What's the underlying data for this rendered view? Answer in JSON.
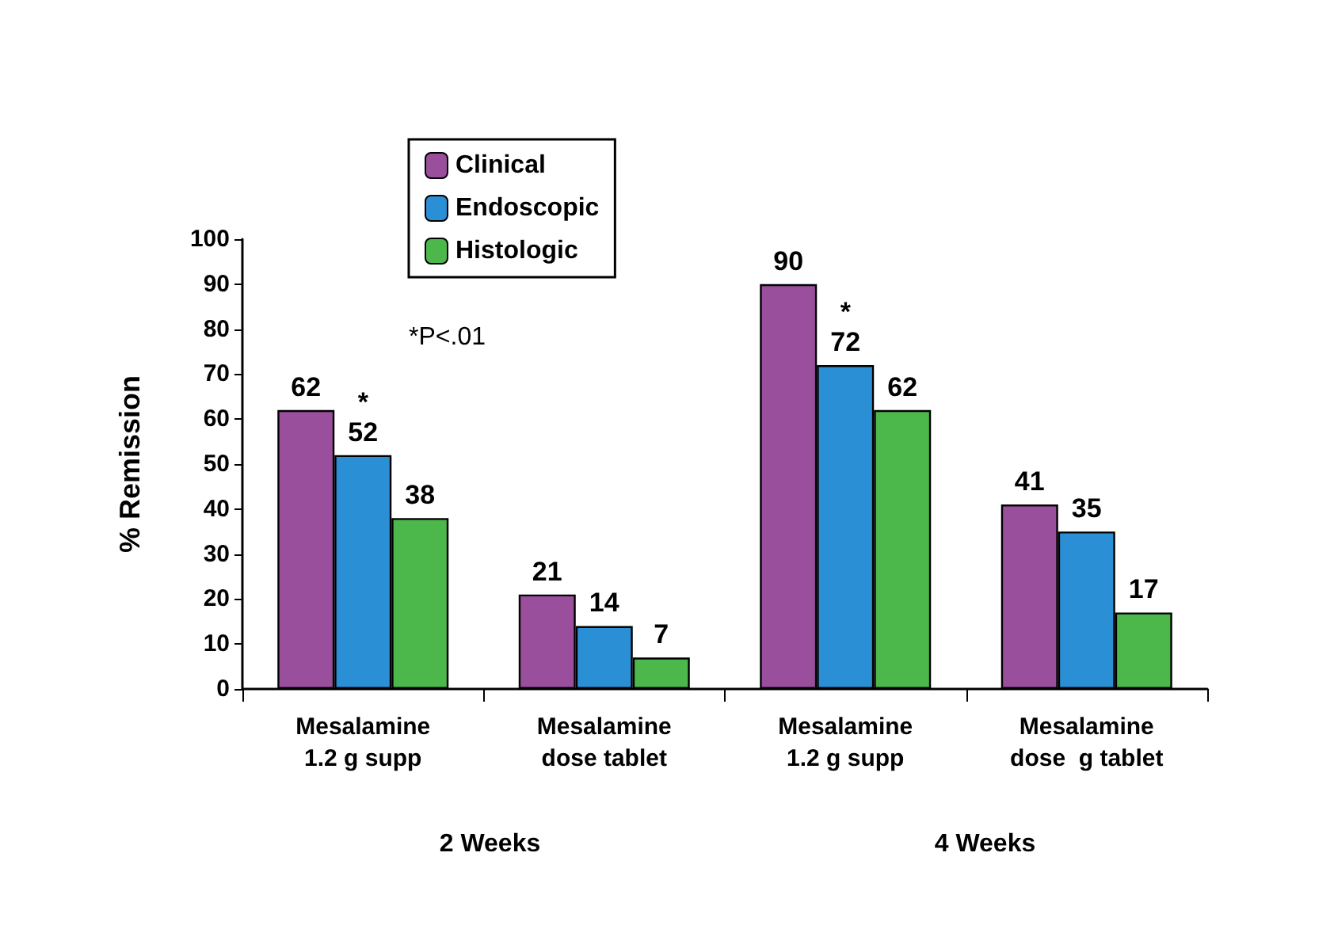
{
  "chart_data": {
    "type": "bar",
    "ylabel": "% Remission",
    "categories": [
      "Mesalamine\n1.2 g supp",
      "Mesalamine\ndose tablet",
      "Mesalamine\n1.2 g supp",
      "Mesalamine\ndose  g tablet"
    ],
    "series": [
      {
        "name": "Clinical",
        "color": "#9a4f9c",
        "values": [
          62,
          21,
          90,
          41
        ],
        "value_labels": [
          "62",
          "21",
          "90",
          "41"
        ]
      },
      {
        "name": "Endoscopic",
        "color": "#2b8fd6",
        "values": [
          52,
          14,
          72,
          35
        ],
        "value_labels": [
          "*\n52",
          "14",
          "*\n72",
          "35"
        ]
      },
      {
        "name": "Histologic",
        "color": "#4cb84c",
        "values": [
          38,
          7,
          62,
          17
        ],
        "value_labels": [
          "38",
          "7",
          "62",
          "17"
        ]
      }
    ],
    "ylim": [
      0,
      100
    ],
    "yticks": [
      0,
      10,
      20,
      30,
      40,
      50,
      60,
      70,
      80,
      90,
      100
    ],
    "grid": false,
    "legend": "top left",
    "annotations": [
      "2 Weeks",
      "4 Weeks",
      "*P<.01"
    ]
  }
}
